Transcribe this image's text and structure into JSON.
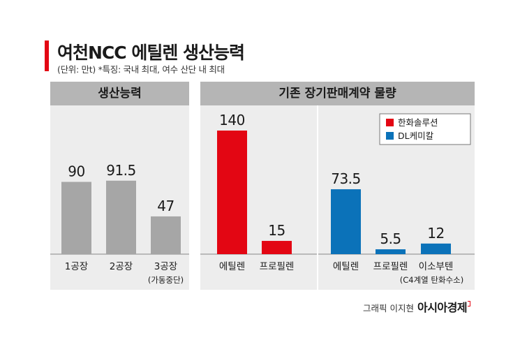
{
  "header": {
    "title": "여천NCC 에틸렌 생산능력",
    "subtitle": "(단위: 만t)  *특징: 국내 최대, 여수 산단 내 최대"
  },
  "credit": {
    "who": "그래픽 이지현",
    "brand": "아시아경제"
  },
  "colors": {
    "gray_bar": "#a6a6a6",
    "hanwha": "#e30613",
    "dl": "#0b72b9",
    "accent": "#e30613"
  },
  "chart_data": [
    {
      "type": "bar",
      "title": "생산능력",
      "categories": [
        "1공장",
        "2공장",
        "3공장"
      ],
      "sublabels": [
        "",
        "",
        "(가동중단)"
      ],
      "values": [
        90,
        91.5,
        47
      ],
      "value_labels": [
        "90",
        "91.5",
        "47"
      ],
      "ylim": [
        0,
        100
      ]
    },
    {
      "type": "bar",
      "title": "기존 장기판매계약 물량",
      "legend": "top-right",
      "ylim": [
        0,
        140
      ],
      "series": [
        {
          "name": "한화솔루션",
          "color": "#e30613",
          "categories": [
            "에틸렌",
            "프로필렌"
          ],
          "values": [
            140,
            15
          ],
          "value_labels": [
            "140",
            "15"
          ],
          "sublabels": [
            "",
            ""
          ]
        },
        {
          "name": "DL케미칼",
          "color": "#0b72b9",
          "categories": [
            "에틸렌",
            "프로필렌",
            "이소부텐"
          ],
          "values": [
            73.5,
            5.5,
            12
          ],
          "value_labels": [
            "73.5",
            "5.5",
            "12"
          ],
          "sublabels": [
            "",
            "",
            "(C4계열 탄화수소)"
          ]
        }
      ]
    }
  ]
}
